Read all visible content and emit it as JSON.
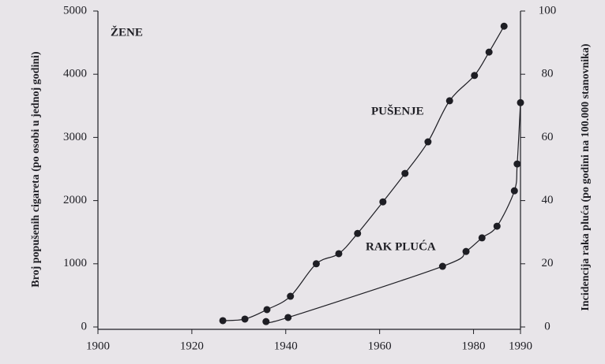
{
  "chart_data": {
    "type": "scatter",
    "y_label": "Broj popušenih cigareta (po osobi u jednoj godini)",
    "y2_label": "Incidencija raka pluća (po godini na 100.000 stanovnika)",
    "annotations": [
      "ŽENE",
      "PUŠENJE",
      "RAK PLUĆA"
    ],
    "xlim": [
      1900,
      1990
    ],
    "xticks": [
      1900,
      1920,
      1940,
      1960,
      1980,
      1990
    ],
    "ylim": [
      0,
      5000
    ],
    "yticks": [
      0,
      1000,
      2000,
      3000,
      4000,
      5000
    ],
    "y2lim": [
      0,
      100
    ],
    "y2ticks": [
      0,
      20,
      40,
      60,
      80,
      100
    ],
    "series": [
      {
        "name": "PUŠENJE",
        "color": "#1e1e24",
        "axis": "y",
        "x": [
          1926.6,
          1931.3,
          1936,
          1941,
          1946.5,
          1951.3,
          1955.3,
          1960.7,
          1965.4,
          1970.3,
          1974.9,
          1980.2,
          1983.3,
          1986.5
        ],
        "values": [
          100,
          125,
          275,
          486,
          1000,
          1160,
          1480,
          1980,
          2430,
          2930,
          3580,
          3980,
          4350,
          4760
        ]
      },
      {
        "name": "RAK PLUĆA",
        "color": "#1e1e24",
        "axis": "y2",
        "x": [
          1935.8,
          1940.5,
          1973.4,
          1978.4,
          1981.8,
          1985,
          1988.7,
          1989.3,
          1990
        ],
        "values": [
          1.7,
          3.0,
          19.2,
          23.9,
          28.2,
          31.9,
          43.1,
          51.6,
          71
        ]
      }
    ]
  }
}
